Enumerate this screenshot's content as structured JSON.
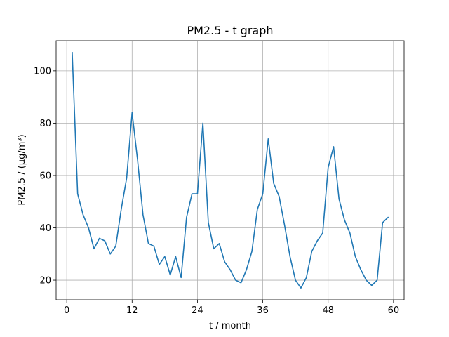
{
  "chart_data": {
    "type": "line",
    "title": "PM2.5 - t graph",
    "xlabel": "t / month",
    "ylabel": "PM2.5 / (μg/m³)",
    "xlim": [
      -1.95,
      61.95
    ],
    "ylim": [
      12.5,
      111.5
    ],
    "xticks": [
      0,
      12,
      24,
      36,
      48,
      60
    ],
    "yticks": [
      20,
      40,
      60,
      80,
      100
    ],
    "grid": true,
    "series": [
      {
        "color": "#1f77b4",
        "x": [
          1,
          2,
          3,
          4,
          5,
          6,
          7,
          8,
          9,
          10,
          11,
          12,
          13,
          14,
          15,
          16,
          17,
          18,
          19,
          20,
          21,
          22,
          23,
          24,
          25,
          26,
          27,
          28,
          29,
          30,
          31,
          32,
          33,
          34,
          35,
          36,
          37,
          38,
          39,
          40,
          41,
          42,
          43,
          44,
          45,
          46,
          47,
          48,
          49,
          50,
          51,
          52,
          53,
          54,
          55,
          56,
          57,
          58,
          59
        ],
        "values": [
          107,
          53,
          45,
          40,
          32,
          36,
          35,
          30,
          33,
          47,
          59,
          84,
          66,
          45,
          34,
          33,
          26,
          29,
          22,
          29,
          21,
          44,
          53,
          53,
          80,
          42,
          32,
          34,
          27,
          24,
          20,
          19,
          24,
          31,
          47,
          53,
          74,
          57,
          52,
          41,
          29,
          20,
          17,
          21,
          31,
          35,
          38,
          63,
          71,
          51,
          43,
          38,
          29,
          24,
          20,
          18,
          20,
          42,
          44
        ]
      }
    ]
  }
}
